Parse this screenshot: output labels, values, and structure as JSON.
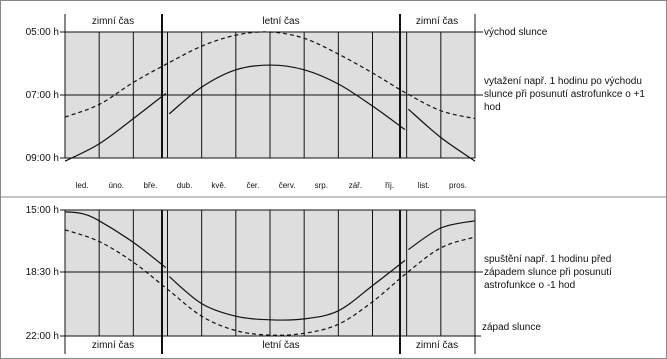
{
  "chart_data": [
    {
      "type": "line",
      "panel": "top",
      "yticks": [
        "05:00 h",
        "07:00 h",
        "09:00 h"
      ],
      "ylim": [
        5,
        9
      ],
      "y_inverted": true,
      "months": [
        "led.",
        "úno.",
        "bře.",
        "dub.",
        "kvě.",
        "čer.",
        "červ.",
        "srp.",
        "zář.",
        "říj.",
        "list.",
        "pros."
      ],
      "season_labels": [
        "zimní čas",
        "letní čas",
        "zimní čas"
      ],
      "series": [
        {
          "name": "východ slunce",
          "style": "dashed",
          "x": [
            0.0,
            1.0,
            2.0,
            3.0,
            4.0,
            5.0,
            6.0,
            7.0,
            8.0,
            9.0,
            10.0,
            11.0,
            12.0
          ],
          "y": [
            7.7,
            7.3,
            6.6,
            6.0,
            5.45,
            5.1,
            5.0,
            5.2,
            5.7,
            6.3,
            6.95,
            7.5,
            7.75
          ]
        },
        {
          "name": "vytažení např. 1 hodinu po východu slunce při posunutí astrofunkce o +1 hod",
          "style": "solid",
          "x": [
            0.0,
            1.0,
            2.0,
            2.95,
            3.05,
            4.0,
            5.0,
            6.0,
            7.0,
            8.0,
            9.0,
            9.95,
            10.05,
            11.0,
            12.0
          ],
          "y": [
            9.1,
            8.55,
            7.75,
            6.95,
            7.6,
            6.75,
            6.2,
            6.05,
            6.2,
            6.65,
            7.35,
            8.1,
            7.45,
            8.35,
            9.1
          ]
        }
      ]
    },
    {
      "type": "line",
      "panel": "bottom",
      "yticks": [
        "15:00 h",
        "18:30 h",
        "22:00 h"
      ],
      "ylim": [
        15,
        22
      ],
      "y_inverted": true,
      "season_labels": [
        "zimní čas",
        "letní čas",
        "zimní čas"
      ],
      "series": [
        {
          "name": "spuštění např. 1 hodinu před západem slunce při posunutí astrofunkce o -1 hod",
          "style": "solid",
          "x": [
            0.0,
            0.5,
            1.0,
            2.0,
            2.95,
            3.05,
            4.0,
            5.0,
            6.0,
            7.0,
            8.0,
            9.0,
            9.95,
            10.05,
            11.0,
            12.0
          ],
          "y": [
            15.1,
            15.2,
            15.6,
            16.8,
            18.2,
            18.7,
            20.2,
            20.9,
            21.1,
            21.05,
            20.6,
            19.2,
            17.8,
            17.2,
            16.0,
            15.6
          ],
          "style_note": ""
        },
        {
          "name": "západ slunce",
          "style": "dashed",
          "x": [
            0.0,
            1.0,
            2.0,
            3.0,
            4.0,
            5.0,
            6.0,
            7.0,
            8.0,
            9.0,
            10.0,
            11.0,
            12.0
          ],
          "y": [
            16.1,
            16.75,
            17.9,
            19.4,
            20.9,
            21.7,
            21.95,
            21.85,
            21.35,
            20.1,
            18.5,
            17.1,
            16.5
          ]
        }
      ]
    }
  ]
}
